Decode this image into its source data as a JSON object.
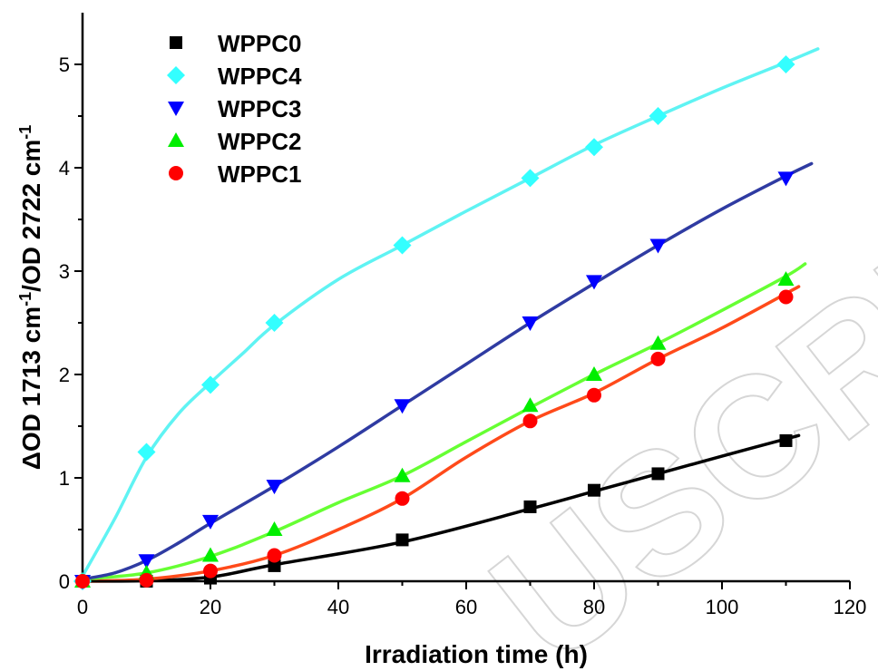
{
  "chart_data": {
    "type": "scatter",
    "xlabel": "Irradiation time (h)",
    "ylabel": {
      "parts": [
        {
          "text": "ΔOD 1713 cm",
          "sup": false
        },
        {
          "text": "-1",
          "sup": true
        },
        {
          "text": "/OD 2722 cm",
          "sup": false
        },
        {
          "text": "-1",
          "sup": true
        }
      ]
    },
    "xlim": [
      0,
      120
    ],
    "ylim": [
      0,
      5.5
    ],
    "xticks": [
      0,
      20,
      40,
      60,
      80,
      100,
      120
    ],
    "yticks": [
      0,
      1,
      2,
      3,
      4,
      5
    ],
    "grid": false,
    "legend_position": "top-left",
    "watermark": "USCRIPT",
    "series": [
      {
        "name": "WPPC0",
        "marker": "square",
        "color": "#000000",
        "line_color": "#000000",
        "x": [
          0,
          10,
          20,
          30,
          50,
          70,
          80,
          90,
          110
        ],
        "y": [
          0,
          0,
          0.03,
          0.15,
          0.4,
          0.72,
          0.88,
          1.04,
          1.36
        ],
        "fit": [
          [
            0,
            0
          ],
          [
            10,
            0.005
          ],
          [
            20,
            0.04
          ],
          [
            30,
            0.16
          ],
          [
            50,
            0.38
          ],
          [
            70,
            0.7
          ],
          [
            80,
            0.87
          ],
          [
            90,
            1.04
          ],
          [
            100,
            1.21
          ],
          [
            112,
            1.41
          ]
        ]
      },
      {
        "name": "WPPC4",
        "marker": "diamond",
        "color": "#33ffff",
        "line_color": "#5ff3f3",
        "x": [
          0,
          10,
          20,
          30,
          50,
          70,
          80,
          90,
          110
        ],
        "y": [
          0,
          1.25,
          1.9,
          2.5,
          3.25,
          3.9,
          4.2,
          4.5,
          5.0
        ],
        "fit": [
          [
            0,
            0.05
          ],
          [
            5,
            0.6
          ],
          [
            10,
            1.2
          ],
          [
            15,
            1.62
          ],
          [
            20,
            1.92
          ],
          [
            25,
            2.2
          ],
          [
            30,
            2.48
          ],
          [
            40,
            2.92
          ],
          [
            50,
            3.25
          ],
          [
            60,
            3.58
          ],
          [
            70,
            3.9
          ],
          [
            80,
            4.22
          ],
          [
            90,
            4.5
          ],
          [
            100,
            4.77
          ],
          [
            110,
            5.02
          ],
          [
            115,
            5.15
          ]
        ]
      },
      {
        "name": "WPPC3",
        "marker": "triangle-down",
        "color": "#0000ff",
        "line_color": "#2f3ba2",
        "x": [
          0,
          10,
          20,
          30,
          50,
          70,
          80,
          90,
          110
        ],
        "y": [
          0,
          0.2,
          0.58,
          0.92,
          1.7,
          2.5,
          2.9,
          3.25,
          3.9
        ],
        "fit": [
          [
            0,
            0.02
          ],
          [
            5,
            0.08
          ],
          [
            10,
            0.2
          ],
          [
            15,
            0.37
          ],
          [
            20,
            0.56
          ],
          [
            30,
            0.92
          ],
          [
            40,
            1.3
          ],
          [
            50,
            1.7
          ],
          [
            60,
            2.1
          ],
          [
            70,
            2.5
          ],
          [
            80,
            2.88
          ],
          [
            90,
            3.25
          ],
          [
            100,
            3.6
          ],
          [
            110,
            3.92
          ],
          [
            114,
            4.04
          ]
        ]
      },
      {
        "name": "WPPC2",
        "marker": "triangle-up",
        "color": "#00ee00",
        "line_color": "#66ff33",
        "x": [
          0,
          10,
          20,
          30,
          50,
          70,
          80,
          90,
          110
        ],
        "y": [
          0,
          0.08,
          0.25,
          0.5,
          1.02,
          1.7,
          2.0,
          2.3,
          2.92
        ],
        "fit": [
          [
            0,
            0.02
          ],
          [
            10,
            0.08
          ],
          [
            20,
            0.24
          ],
          [
            30,
            0.48
          ],
          [
            40,
            0.76
          ],
          [
            50,
            1.02
          ],
          [
            60,
            1.35
          ],
          [
            70,
            1.68
          ],
          [
            80,
            2.0
          ],
          [
            90,
            2.3
          ],
          [
            100,
            2.62
          ],
          [
            110,
            2.95
          ],
          [
            113,
            3.07
          ]
        ]
      },
      {
        "name": "WPPC1",
        "marker": "circle",
        "color": "#ff0000",
        "line_color": "#ff4a1a",
        "x": [
          0,
          10,
          20,
          30,
          50,
          70,
          80,
          90,
          110
        ],
        "y": [
          0,
          0.01,
          0.1,
          0.25,
          0.8,
          1.55,
          1.8,
          2.15,
          2.75
        ],
        "fit": [
          [
            0,
            0
          ],
          [
            10,
            0.02
          ],
          [
            20,
            0.1
          ],
          [
            30,
            0.25
          ],
          [
            40,
            0.5
          ],
          [
            50,
            0.8
          ],
          [
            60,
            1.2
          ],
          [
            70,
            1.55
          ],
          [
            80,
            1.82
          ],
          [
            90,
            2.15
          ],
          [
            100,
            2.45
          ],
          [
            112,
            2.85
          ]
        ]
      }
    ]
  }
}
